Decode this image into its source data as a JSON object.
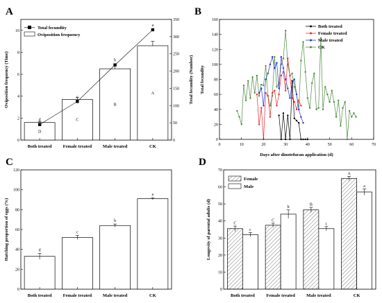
{
  "chart_data": [
    {
      "panel": "A",
      "type": "bar",
      "categories": [
        "Both treated",
        "Female treated",
        "Male treated",
        "CK"
      ],
      "bars": {
        "name": "Oviposition frequency",
        "values": [
          1.6,
          3.7,
          6.5,
          8.6
        ],
        "errors": [
          0.1,
          0.2,
          0.4,
          0.4
        ],
        "letters": [
          "D",
          "C",
          "B",
          "A"
        ]
      },
      "line": {
        "name": "Total fecundity",
        "values": [
          45,
          112,
          218,
          320
        ],
        "letters": [
          "d",
          "c",
          "b",
          "a"
        ]
      },
      "ylabel": "Oviposition frequency (Time)",
      "y2label": "Total fecundity (Number)",
      "ylim": [
        0,
        11
      ],
      "y2lim": [
        0,
        350
      ],
      "yticks": [
        0,
        2,
        4,
        6,
        8,
        10
      ],
      "y2ticks": [
        0,
        50,
        100,
        150,
        200,
        250,
        300,
        350
      ],
      "legend": "top-left"
    },
    {
      "panel": "B",
      "type": "line",
      "xlabel": "Days after dinotefuran application (d)",
      "ylabel": "Total fecundity",
      "xlim": [
        0,
        70
      ],
      "ylim": [
        0,
        160
      ],
      "xticks": [
        0,
        10,
        20,
        30,
        40,
        50,
        60,
        70
      ],
      "yticks": [
        0,
        20,
        40,
        60,
        80,
        100,
        120,
        140,
        160
      ],
      "legend": "top-right",
      "series": [
        {
          "name": "Both treated",
          "color": "#000000",
          "x": [
            27,
            28,
            29,
            30,
            31,
            32,
            33,
            34,
            35,
            36,
            37,
            38,
            39,
            40
          ],
          "y": [
            32,
            0,
            35,
            0,
            32,
            0,
            78,
            28,
            25,
            22,
            0,
            0,
            0,
            0
          ]
        },
        {
          "name": "Female treated",
          "color": "#e8262b",
          "x": [
            17,
            18,
            19,
            20,
            21,
            22,
            23,
            24,
            25,
            26,
            27,
            28,
            29,
            30,
            31,
            32,
            33,
            34,
            35,
            36,
            37
          ],
          "y": [
            60,
            20,
            42,
            0,
            62,
            58,
            30,
            62,
            65,
            45,
            60,
            85,
            90,
            65,
            108,
            85,
            55,
            50,
            40,
            52,
            45
          ]
        },
        {
          "name": "Male treated",
          "color": "#2233cc",
          "x": [
            18,
            19,
            20,
            21,
            22,
            23,
            24,
            25,
            26,
            27,
            28,
            29,
            30,
            31,
            32,
            33,
            34,
            35,
            36,
            37,
            38
          ],
          "y": [
            62,
            68,
            45,
            80,
            88,
            100,
            110,
            95,
            102,
            68,
            110,
            95,
            80,
            68,
            55,
            75,
            80,
            60,
            40,
            30,
            22
          ]
        },
        {
          "name": "CK",
          "color": "#4a8a3c",
          "x": [
            8,
            9,
            10,
            11,
            12,
            13,
            14,
            15,
            16,
            17,
            18,
            19,
            20,
            21,
            22,
            23,
            24,
            25,
            26,
            27,
            28,
            29,
            30,
            31,
            32,
            33,
            34,
            35,
            36,
            37,
            38,
            39,
            40,
            41,
            42,
            43,
            44,
            45,
            46,
            47,
            48,
            49,
            50,
            51,
            52,
            53,
            54,
            55,
            56,
            57,
            58,
            59,
            60,
            61,
            62
          ],
          "y": [
            38,
            30,
            20,
            72,
            52,
            78,
            55,
            83,
            62,
            85,
            58,
            73,
            72,
            98,
            58,
            45,
            58,
            110,
            70,
            75,
            100,
            108,
            145,
            100,
            85,
            88,
            70,
            60,
            40,
            105,
            130,
            90,
            55,
            42,
            75,
            88,
            40,
            42,
            135,
            40,
            70,
            60,
            50,
            65,
            50,
            30,
            52,
            18,
            42,
            50,
            0,
            38,
            30,
            35,
            30
          ]
        }
      ]
    },
    {
      "panel": "C",
      "type": "bar",
      "categories": [
        "Both treated",
        "Female treated",
        "Male treated",
        "CK"
      ],
      "values": [
        33,
        52,
        64,
        91
      ],
      "errors": [
        3,
        2,
        1.5,
        1
      ],
      "letters": [
        "d",
        "c",
        "b",
        "a"
      ],
      "ylabel": "Hatching proportion of eggs (%)",
      "ylim": [
        0,
        120
      ],
      "yticks": [
        0,
        20,
        40,
        60,
        80,
        100,
        120
      ]
    },
    {
      "panel": "D",
      "type": "bar",
      "categories": [
        "Both treated",
        "Female treated",
        "Male treated",
        "CK"
      ],
      "ylabel": "Longevity of parental adults (d)",
      "ylim": [
        0,
        70
      ],
      "yticks": [
        0,
        10,
        20,
        30,
        40,
        50,
        60,
        70
      ],
      "legend": "top-left",
      "series": [
        {
          "name": "Female",
          "values": [
            35.5,
            37.5,
            46.5,
            65
          ],
          "errors": [
            1.5,
            1.2,
            1.5,
            1.2
          ],
          "letters": [
            "C",
            "C",
            "B",
            "A"
          ]
        },
        {
          "name": "Male",
          "values": [
            32,
            44,
            35.5,
            57
          ],
          "errors": [
            1.2,
            2.5,
            1.2,
            1.8
          ],
          "letters": [
            "c",
            "b",
            "c",
            "a"
          ]
        }
      ]
    }
  ]
}
